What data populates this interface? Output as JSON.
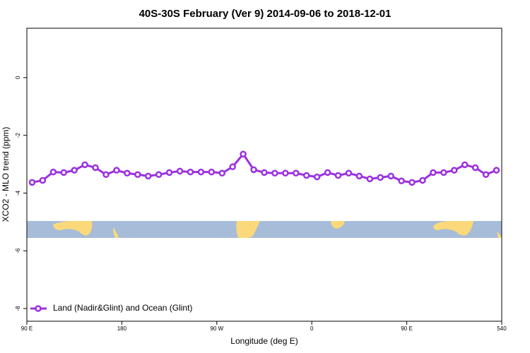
{
  "chart_data": {
    "type": "line",
    "title": "40S-30S February (Ver 9)   2014-09-06 to 2018-12-01",
    "x_label": "Longitude (deg E)",
    "y_label": "XCO2 - MLO trend (ppm)",
    "x": [
      95,
      105,
      115,
      125,
      135,
      145,
      155,
      165,
      175,
      185,
      195,
      205,
      215,
      225,
      235,
      245,
      255,
      265,
      275,
      285,
      295,
      305,
      315,
      325,
      335,
      345,
      355,
      365,
      375,
      385,
      395,
      405,
      415,
      425,
      435,
      445,
      455,
      465,
      475,
      485,
      495,
      505,
      515,
      525,
      535
    ],
    "series": [
      {
        "name": "Land (Nadir&Glint) and Ocean (Glint)",
        "color": "#9b30e0",
        "values": [
          -3.63,
          -3.56,
          -3.27,
          -3.29,
          -3.21,
          -3.02,
          -3.12,
          -3.36,
          -3.21,
          -3.31,
          -3.36,
          -3.41,
          -3.36,
          -3.29,
          -3.24,
          -3.27,
          -3.27,
          -3.27,
          -3.31,
          -3.09,
          -2.65,
          -3.19,
          -3.29,
          -3.31,
          -3.31,
          -3.31,
          -3.39,
          -3.44,
          -3.29,
          -3.39,
          -3.31,
          -3.41,
          -3.51,
          -3.46,
          -3.41,
          -3.58,
          -3.63,
          -3.56,
          -3.29,
          -3.29,
          -3.21,
          -3.02,
          -3.12,
          -3.36,
          -3.21
        ]
      }
    ],
    "xlim": [
      90,
      540
    ],
    "xticks": [
      {
        "value": 90,
        "label": "90 E"
      },
      180,
      {
        "value": 270,
        "label": "90 W"
      },
      {
        "value": 360,
        "label": "0"
      },
      {
        "value": 450,
        "label": "90 E"
      },
      540
    ],
    "ylim": [
      -8.44,
      1.71
    ],
    "yticks": [
      0,
      -2,
      -4,
      -6,
      -8
    ],
    "legend": "bottom-left"
  }
}
